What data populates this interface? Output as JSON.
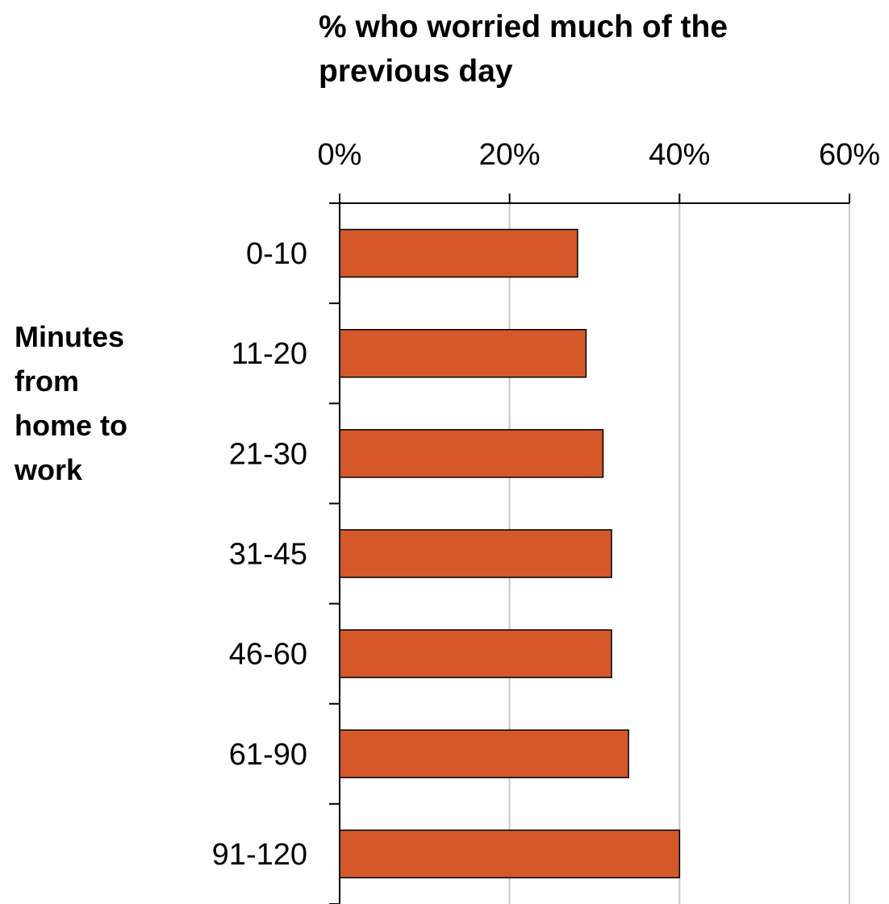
{
  "chart_data": {
    "type": "bar",
    "orientation": "horizontal",
    "title_lines": [
      "% who worried much of the",
      "previous day"
    ],
    "ylabel_lines": [
      "Minutes",
      "from",
      "home to",
      "work"
    ],
    "categories": [
      "0-10",
      "11-20",
      "21-30",
      "31-45",
      "46-60",
      "61-90",
      "91-120"
    ],
    "values": [
      28,
      29,
      31,
      32,
      32,
      34,
      40
    ],
    "xlim": [
      0,
      60
    ],
    "x_ticks": [
      0,
      20,
      40,
      60
    ],
    "x_tick_labels": [
      "0%",
      "20%",
      "40%",
      "60%"
    ],
    "x_axis_position": "top",
    "grid": true,
    "legend": "none",
    "bar_color": "#d4582a"
  }
}
